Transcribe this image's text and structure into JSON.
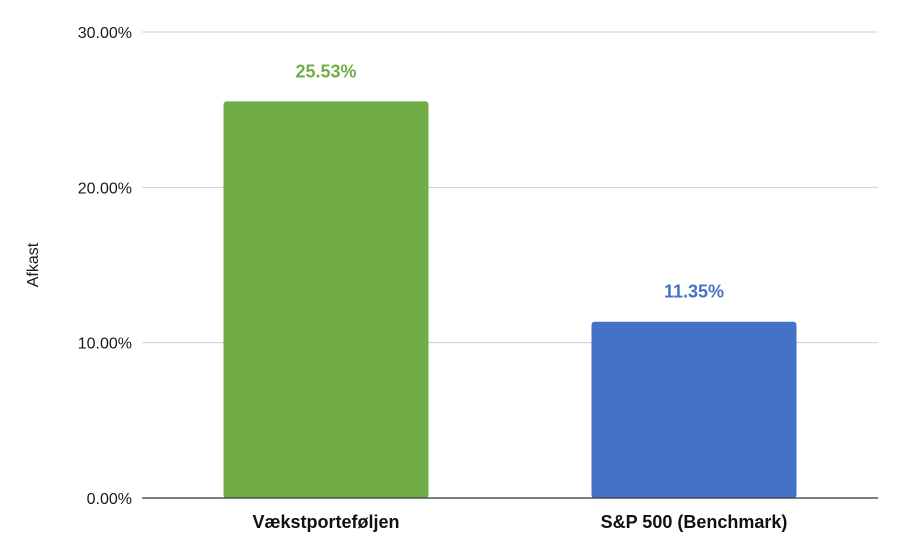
{
  "chart_data": {
    "type": "bar",
    "title": "",
    "xlabel": "",
    "ylabel": "Afkast",
    "ylim": [
      0,
      30
    ],
    "yticks": [
      0,
      10,
      20,
      30
    ],
    "ytick_labels": [
      "0.00%",
      "10.00%",
      "20.00%",
      "30.00%"
    ],
    "grid": true,
    "legend": "none",
    "categories": [
      "Vækstporteføljen",
      "S&P 500 (Benchmark)"
    ],
    "values": [
      25.53,
      11.35
    ],
    "data_labels": [
      "25.53%",
      "11.35%"
    ],
    "colors": [
      "#70ad47",
      "#4472c4"
    ]
  }
}
